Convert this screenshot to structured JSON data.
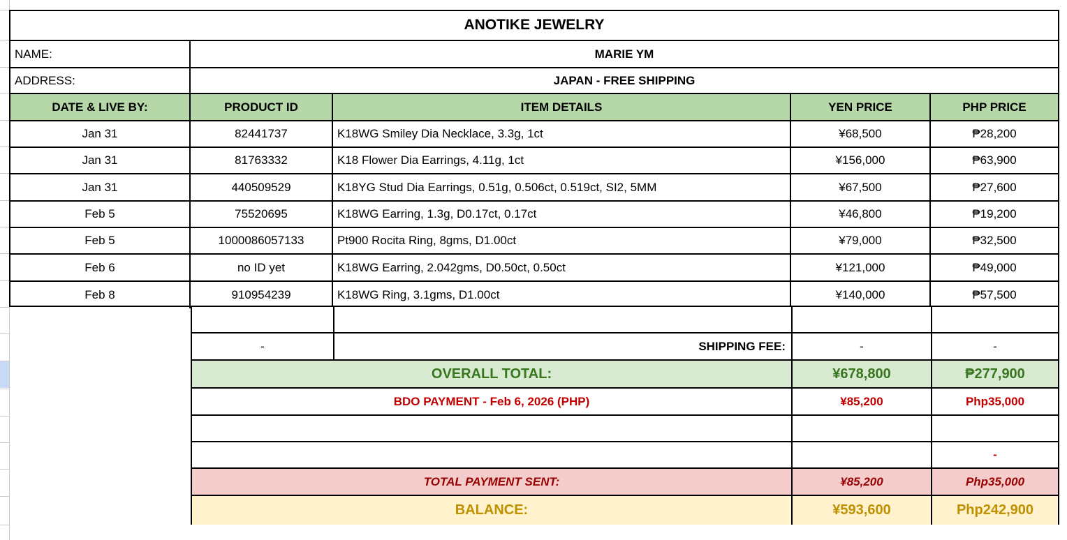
{
  "title": "ANOTIKE JEWELRY",
  "info": {
    "name_label": "NAME:",
    "name_value": "MARIE YM",
    "address_label": "ADDRESS:",
    "address_value": "JAPAN - FREE SHIPPING"
  },
  "columns": [
    "DATE & LIVE BY:",
    "PRODUCT ID",
    "ITEM DETAILS",
    "YEN PRICE",
    "PHP PRICE"
  ],
  "rows": [
    {
      "date": "Jan 31",
      "id": "82441737",
      "details": "K18WG Smiley Dia Necklace, 3.3g, 1ct",
      "yen": "¥68,500",
      "php": "₱28,200"
    },
    {
      "date": "Jan 31",
      "id": "81763332",
      "details": "K18 Flower Dia Earrings, 4.11g, 1ct",
      "yen": "¥156,000",
      "php": "₱63,900"
    },
    {
      "date": "Jan 31",
      "id": "440509529",
      "details": "K18YG Stud Dia Earrings, 0.51g, 0.506ct, 0.519ct, SI2, 5MM",
      "yen": "¥67,500",
      "php": "₱27,600"
    },
    {
      "date": "Feb 5",
      "id": "75520695",
      "details": "K18WG Earring, 1.3g, D0.17ct, 0.17ct",
      "yen": "¥46,800",
      "php": "₱19,200"
    },
    {
      "date": "Feb 5",
      "id": "1000086057133",
      "details": "Pt900 Rocita Ring, 8gms, D1.00ct",
      "yen": "¥79,000",
      "php": "₱32,500"
    },
    {
      "date": "Feb 6",
      "id": "no ID yet",
      "details": "K18WG Earring, 2.042gms, D0.50ct, 0.50ct",
      "yen": "¥121,000",
      "php": "₱49,000"
    },
    {
      "date": "Feb 8",
      "id": "910954239",
      "details": "K18WG Ring, 3.1gms, D1.00ct",
      "yen": "¥140,000",
      "php": "₱57,500"
    }
  ],
  "shipping": {
    "dash": "-",
    "label": "SHIPPING FEE:",
    "yen": "-",
    "php": "-"
  },
  "overall": {
    "label": "OVERALL TOTAL:",
    "yen": "¥678,800",
    "php": "₱277,900"
  },
  "bdo": {
    "label": "BDO PAYMENT - Feb 6, 2026 (PHP)",
    "yen": "¥85,200",
    "php": "Php35,000"
  },
  "dash_row": {
    "php": "-"
  },
  "payment_sent": {
    "label": "TOTAL PAYMENT SENT:",
    "yen": "¥85,200",
    "php": "Php35,000"
  },
  "balance": {
    "label": "BALANCE:",
    "yen": "¥593,600",
    "php": "Php242,900"
  },
  "colors": {
    "header_green": "#b6d7a8",
    "total_row_green": "#d9ead3",
    "total_text_green": "#38761d",
    "payment_text_red": "#c00000",
    "payment_sent_bg_pink": "#f4cccc",
    "payment_sent_text": "#990000",
    "balance_bg_yellow": "#fff2cc",
    "balance_text": "#bf9000",
    "gutter_blue_cell": "#c9daf8",
    "gridline_gray": "#c8c8c8"
  }
}
